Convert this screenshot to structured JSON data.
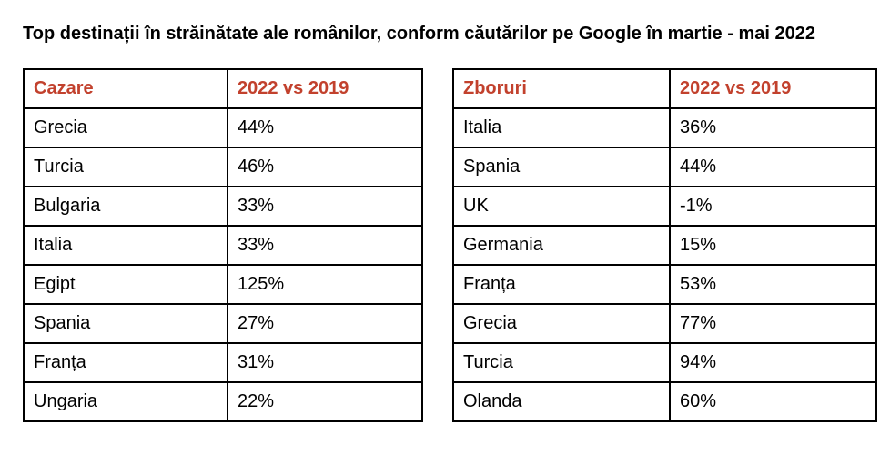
{
  "title": "Top destinații în străinătate ale românilor, conform căutărilor pe Google în martie - mai 2022",
  "accent_color": "#c2412d",
  "tables": [
    {
      "headers": [
        "Cazare",
        "2022 vs 2019"
      ],
      "rows": [
        [
          "Grecia",
          "44%"
        ],
        [
          "Turcia",
          "46%"
        ],
        [
          "Bulgaria",
          "33%"
        ],
        [
          "Italia",
          "33%"
        ],
        [
          "Egipt",
          "125%"
        ],
        [
          "Spania",
          "27%"
        ],
        [
          "Franța",
          "31%"
        ],
        [
          "Ungaria",
          "22%"
        ]
      ]
    },
    {
      "headers": [
        "Zboruri",
        "2022 vs 2019"
      ],
      "rows": [
        [
          "Italia",
          "36%"
        ],
        [
          "Spania",
          "44%"
        ],
        [
          "UK",
          "-1%"
        ],
        [
          "Germania",
          "15%"
        ],
        [
          "Franța",
          "53%"
        ],
        [
          "Grecia",
          "77%"
        ],
        [
          "Turcia",
          "94%"
        ],
        [
          "Olanda",
          "60%"
        ]
      ]
    }
  ]
}
